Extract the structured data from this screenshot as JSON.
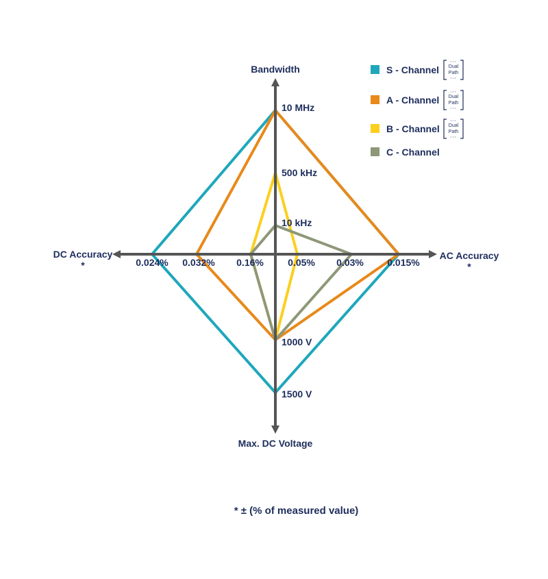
{
  "colors": {
    "text": "#1d2d5c",
    "axis": "#555555",
    "s_channel": "#1ea7bb",
    "a_channel": "#e8891a",
    "b_channel": "#fccf1f",
    "c_channel": "#8e9878"
  },
  "chart_data": {
    "type": "radar",
    "axes": [
      {
        "name": "Bandwidth",
        "direction": "up",
        "ticks": [
          "10 kHz",
          "500 kHz",
          "10 MHz"
        ]
      },
      {
        "name": "AC Accuracy",
        "note": "*",
        "direction": "right",
        "ticks": [
          "0.05%",
          "0.03%",
          "0.015%"
        ]
      },
      {
        "name": "Max. DC Voltage",
        "direction": "down",
        "ticks": [
          "1000 V",
          "1500 V"
        ]
      },
      {
        "name": "DC Accuracy",
        "note": "*",
        "direction": "left",
        "ticks": [
          "0.16%",
          "0.032%",
          "0.024%"
        ]
      }
    ],
    "series": [
      {
        "name": "S - Channel",
        "color_key": "s_channel",
        "dual_path": true,
        "values": {
          "Bandwidth": "10 MHz",
          "AC Accuracy": "0.015%",
          "Max. DC Voltage": "1500 V",
          "DC Accuracy": "0.024%"
        }
      },
      {
        "name": "A - Channel",
        "color_key": "a_channel",
        "dual_path": true,
        "values": {
          "Bandwidth": "10 MHz",
          "AC Accuracy": "0.015%",
          "Max. DC Voltage": "1000 V",
          "DC Accuracy": "0.032%"
        }
      },
      {
        "name": "B - Channel",
        "color_key": "b_channel",
        "dual_path": true,
        "values": {
          "Bandwidth": "500 kHz",
          "AC Accuracy": "0.05%",
          "Max. DC Voltage": "1000 V",
          "DC Accuracy": "0.16%"
        }
      },
      {
        "name": "C - Channel",
        "color_key": "c_channel",
        "dual_path": false,
        "values": {
          "Bandwidth": "10 kHz",
          "AC Accuracy": "0.03%",
          "Max. DC Voltage": "1000 V",
          "DC Accuracy": "0.16%"
        }
      }
    ],
    "legend_badge": [
      "Dual",
      "Path"
    ],
    "legend_position": "top-right",
    "footnote": "* ± (% of measured value)"
  }
}
